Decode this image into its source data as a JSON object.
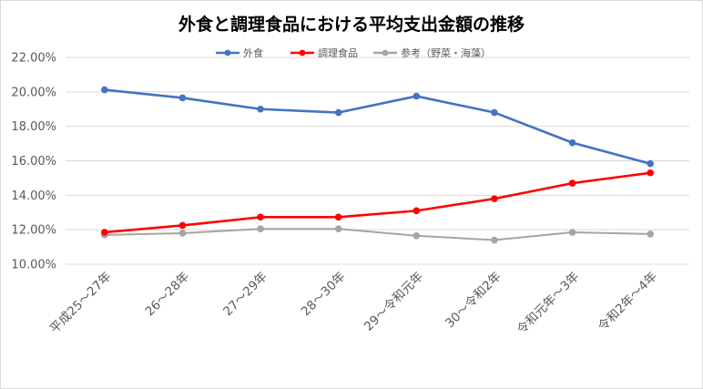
{
  "chart_data": {
    "type": "line",
    "title": "外食と調理食品における平均支出金額の推移",
    "categories": [
      "平成25～27年",
      "26～28年",
      "27～29年",
      "28～30年",
      "29～令和元年",
      "30～令和2年",
      "令和元年～3年",
      "令和2年～4年"
    ],
    "series": [
      {
        "name": "外食",
        "color": "#4472C4",
        "values": [
          20.12,
          19.65,
          19.0,
          18.8,
          19.75,
          18.8,
          17.05,
          15.83
        ]
      },
      {
        "name": "調理食品",
        "color": "#FF0000",
        "values": [
          11.85,
          12.25,
          12.73,
          12.73,
          13.1,
          13.8,
          14.7,
          15.3
        ]
      },
      {
        "name": "参考（野菜・海藻）",
        "color": "#A5A5A5",
        "values": [
          11.7,
          11.8,
          12.05,
          12.05,
          11.65,
          11.4,
          11.85,
          11.75
        ]
      }
    ],
    "ylim": [
      10,
      22
    ],
    "yticks": [
      "10.00%",
      "12.00%",
      "14.00%",
      "16.00%",
      "18.00%",
      "20.00%",
      "22.00%"
    ],
    "grid": true,
    "legend": "top-center"
  }
}
